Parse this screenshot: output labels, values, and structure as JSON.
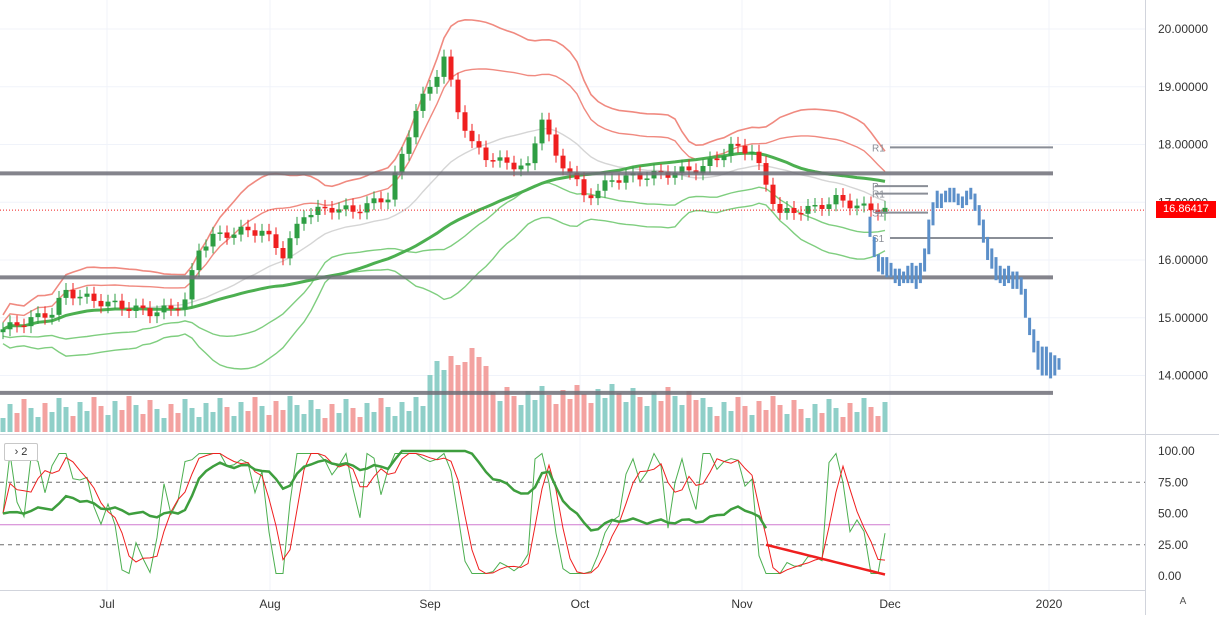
{
  "chart_data": {
    "type": "candlestick",
    "price_axis": {
      "ticks": [
        {
          "value": 20,
          "label": "20.00000"
        },
        {
          "value": 19,
          "label": "19.00000"
        },
        {
          "value": 18,
          "label": "18.00000"
        },
        {
          "value": 17,
          "label": "17.00000"
        },
        {
          "value": 16,
          "label": "16.00000"
        },
        {
          "value": 15,
          "label": "15.00000"
        },
        {
          "value": 14,
          "label": "14.00000"
        }
      ],
      "range": [
        13.2,
        20.5
      ]
    },
    "last_price": {
      "value": 16.86417,
      "label": "16.86417",
      "color": "#ff0000"
    },
    "time_axis": {
      "labels": [
        "Jul",
        "Aug",
        "Sep",
        "Oct",
        "Nov",
        "Dec",
        "2020"
      ]
    },
    "oscillator": {
      "badge": "2",
      "ticks": [
        {
          "value": 100,
          "label": "100.00"
        },
        {
          "value": 75,
          "label": "75.00"
        },
        {
          "value": 50,
          "label": "50.00"
        },
        {
          "value": 25,
          "label": "25.00"
        },
        {
          "value": 0,
          "label": "0.00"
        }
      ],
      "dashed_levels": [
        75,
        25
      ],
      "signal_level": 41
    },
    "horizontal_levels": [
      17.5,
      15.7,
      13.7
    ],
    "pivot_labels": [
      "R1",
      "P",
      "R1",
      "S1",
      "S1"
    ],
    "pivot_levels": [
      {
        "label": "R1",
        "value": 17.95
      },
      {
        "label": "P",
        "value": 17.28
      },
      {
        "label": "R1",
        "value": 17.15
      },
      {
        "label": "S1",
        "value": 16.82
      },
      {
        "label": "S1",
        "value": 16.38
      }
    ],
    "colors": {
      "up": "#2e9e43",
      "down": "#ef1f1f",
      "vol_up": "#8fcfc8",
      "vol_down": "#f3a2a0",
      "bb_upper": "#f08a80",
      "bb_lower": "#7fce7f",
      "ma_green": "#4caf50",
      "ma_gray": "#d5d5d5",
      "projection": "#5b8fc9",
      "level": "#6f6f78"
    },
    "projection_bars": [
      [
        16.75,
        16.4
      ],
      [
        16.4,
        16.05
      ],
      [
        16.1,
        15.8
      ],
      [
        16.05,
        15.75
      ],
      [
        16.05,
        15.7
      ],
      [
        15.95,
        15.7
      ],
      [
        15.85,
        15.6
      ],
      [
        15.85,
        15.55
      ],
      [
        15.8,
        15.6
      ],
      [
        15.9,
        15.6
      ],
      [
        15.95,
        15.6
      ],
      [
        15.9,
        15.5
      ],
      [
        15.95,
        15.6
      ],
      [
        16.2,
        15.8
      ],
      [
        16.7,
        16.1
      ],
      [
        17.0,
        16.6
      ],
      [
        17.2,
        16.9
      ],
      [
        17.15,
        16.9
      ],
      [
        17.2,
        17.0
      ],
      [
        17.25,
        17.0
      ],
      [
        17.25,
        17.0
      ],
      [
        17.15,
        16.95
      ],
      [
        17.1,
        16.9
      ],
      [
        17.2,
        16.95
      ],
      [
        17.25,
        17.05
      ],
      [
        17.15,
        16.85
      ],
      [
        16.95,
        16.6
      ],
      [
        16.7,
        16.3
      ],
      [
        16.4,
        16.0
      ],
      [
        16.2,
        15.85
      ],
      [
        16.05,
        15.65
      ],
      [
        15.9,
        15.6
      ],
      [
        15.85,
        15.55
      ],
      [
        15.9,
        15.6
      ],
      [
        15.8,
        15.5
      ],
      [
        15.8,
        15.5
      ],
      [
        15.7,
        15.4
      ],
      [
        15.5,
        15.0
      ],
      [
        15.0,
        14.7
      ],
      [
        14.8,
        14.4
      ],
      [
        14.6,
        14.1
      ],
      [
        14.5,
        14.0
      ],
      [
        14.5,
        14.0
      ],
      [
        14.4,
        13.95
      ],
      [
        14.35,
        14.0
      ],
      [
        14.3,
        14.1
      ]
    ]
  }
}
